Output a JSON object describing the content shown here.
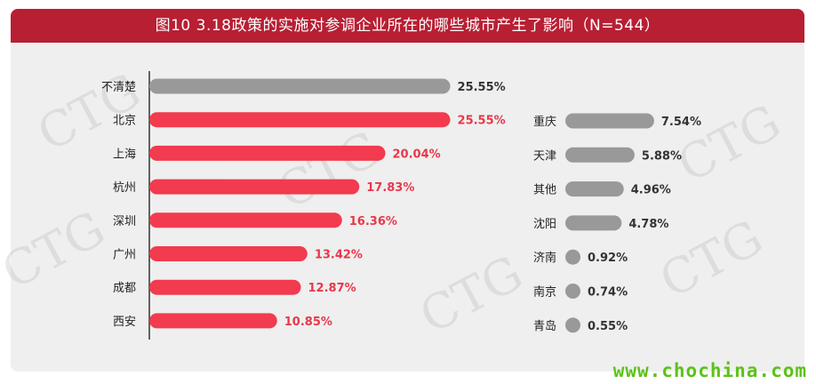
{
  "title": "图10 3.18政策的实施对参调企业所在的哪些城市产生了影响（N=544）",
  "watermark_text": "CTG",
  "footer_url": "www.chochina.com",
  "colors": {
    "title_bg": "#b81f33",
    "red_bar": "#f23b4e",
    "gray_bar": "#999999",
    "red_label": "#e8384a",
    "gray_label": "#333333",
    "axis": "#333333",
    "url": "#5cc21a"
  },
  "chart_data": [
    {
      "type": "bar",
      "orientation": "horizontal",
      "categories": [
        "不清楚",
        "北京",
        "上海",
        "杭州",
        "深圳",
        "广州",
        "成都",
        "西安"
      ],
      "values": [
        25.55,
        25.55,
        20.04,
        17.83,
        16.36,
        13.42,
        12.87,
        10.85
      ],
      "value_labels": [
        "25.55%",
        "25.55%",
        "20.04%",
        "17.83%",
        "16.36%",
        "13.42%",
        "12.87%",
        "10.85%"
      ],
      "bar_colors": [
        "gray",
        "red",
        "red",
        "red",
        "red",
        "red",
        "red",
        "red"
      ],
      "unit": "%",
      "xlim": [
        0,
        30
      ]
    },
    {
      "type": "bar",
      "orientation": "horizontal",
      "categories": [
        "重庆",
        "天津",
        "其他",
        "沈阳",
        "济南",
        "南京",
        "青岛"
      ],
      "values": [
        7.54,
        5.88,
        4.96,
        4.78,
        0.92,
        0.74,
        0.55
      ],
      "value_labels": [
        "7.54%",
        "5.88%",
        "4.96%",
        "4.78%",
        "0.92%",
        "0.74%",
        "0.55%"
      ],
      "bar_colors": [
        "gray",
        "gray",
        "gray",
        "gray",
        "gray",
        "gray",
        "gray"
      ],
      "unit": "%",
      "xlim": [
        0,
        30
      ]
    }
  ]
}
